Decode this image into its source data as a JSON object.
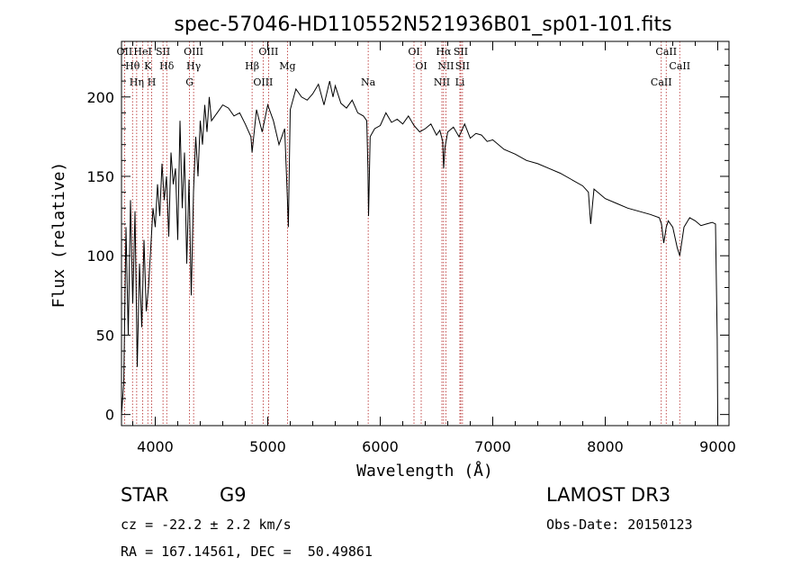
{
  "chart_data": {
    "type": "line",
    "title": "spec-57046-HD110552N521936B01_sp01-101.fits",
    "xlabel": "Wavelength (Å)",
    "ylabel": "Flux (relative)",
    "xlim": [
      3700,
      9100
    ],
    "ylim": [
      -7,
      235
    ],
    "xticks": [
      4000,
      5000,
      6000,
      7000,
      8000,
      9000
    ],
    "yticks": [
      0,
      50,
      100,
      150,
      200
    ],
    "series": [
      {
        "name": "flux",
        "x": [
          3700,
          3720,
          3740,
          3760,
          3780,
          3800,
          3820,
          3840,
          3860,
          3880,
          3900,
          3920,
          3940,
          3960,
          3980,
          4000,
          4020,
          4040,
          4060,
          4080,
          4100,
          4120,
          4140,
          4160,
          4180,
          4200,
          4220,
          4240,
          4260,
          4280,
          4300,
          4320,
          4340,
          4360,
          4380,
          4400,
          4420,
          4440,
          4460,
          4480,
          4500,
          4550,
          4600,
          4650,
          4700,
          4750,
          4800,
          4850,
          4861,
          4900,
          4950,
          5000,
          5050,
          5100,
          5150,
          5175,
          5183,
          5200,
          5250,
          5300,
          5350,
          5400,
          5450,
          5500,
          5550,
          5580,
          5600,
          5650,
          5700,
          5750,
          5800,
          5850,
          5880,
          5890,
          5896,
          5910,
          5950,
          6000,
          6050,
          6100,
          6150,
          6200,
          6250,
          6300,
          6350,
          6400,
          6450,
          6500,
          6530,
          6555,
          6563,
          6575,
          6600,
          6650,
          6700,
          6750,
          6800,
          6850,
          6900,
          6950,
          7000,
          7100,
          7200,
          7300,
          7400,
          7500,
          7600,
          7700,
          7800,
          7850,
          7870,
          7900,
          8000,
          8100,
          8200,
          8300,
          8400,
          8480,
          8500,
          8520,
          8542,
          8560,
          8600,
          8640,
          8662,
          8700,
          8750,
          8800,
          8850,
          8900,
          8950,
          8980,
          8995,
          9000
        ],
        "values": [
          0,
          20,
          118,
          50,
          135,
          70,
          128,
          30,
          95,
          55,
          110,
          65,
          80,
          105,
          130,
          118,
          145,
          125,
          158,
          135,
          150,
          112,
          165,
          145,
          155,
          110,
          185,
          130,
          165,
          95,
          148,
          75,
          140,
          175,
          150,
          185,
          170,
          195,
          178,
          200,
          185,
          190,
          195,
          193,
          188,
          190,
          183,
          175,
          165,
          192,
          178,
          195,
          185,
          170,
          180,
          135,
          118,
          192,
          205,
          200,
          198,
          202,
          208,
          195,
          210,
          200,
          207,
          196,
          193,
          198,
          190,
          188,
          185,
          155,
          125,
          175,
          180,
          182,
          190,
          184,
          186,
          183,
          188,
          182,
          178,
          180,
          183,
          176,
          179,
          172,
          155,
          168,
          178,
          181,
          175,
          183,
          174,
          177,
          176,
          172,
          173,
          167,
          164,
          160,
          158,
          155,
          152,
          148,
          144,
          140,
          120,
          142,
          136,
          133,
          130,
          128,
          126,
          124,
          120,
          108,
          118,
          122,
          118,
          105,
          100,
          118,
          124,
          122,
          119,
          120,
          121,
          120,
          48,
          -4
        ]
      }
    ],
    "lines": [
      {
        "name": "OII",
        "x": 3727,
        "labels": [
          "OII"
        ]
      },
      {
        "name": "Hθ",
        "x": 3798,
        "labels": [
          "Hθ"
        ]
      },
      {
        "name": "Hη",
        "x": 3835,
        "labels": [
          "Hη"
        ]
      },
      {
        "name": "HeI",
        "x": 3889,
        "labels": [
          "HeI"
        ]
      },
      {
        "name": "K",
        "x": 3934,
        "labels": [
          "K"
        ]
      },
      {
        "name": "H",
        "x": 3968,
        "labels": [
          "H"
        ]
      },
      {
        "name": "SII",
        "x": 4069,
        "labels": [
          "SII"
        ]
      },
      {
        "name": "Hδ",
        "x": 4102,
        "labels": [
          "Hδ"
        ]
      },
      {
        "name": "G",
        "x": 4305,
        "labels": [
          "G"
        ]
      },
      {
        "name": "Hγ",
        "x": 4341,
        "labels": [
          "OIII",
          "Hγ"
        ]
      },
      {
        "name": "Hβ",
        "x": 4861,
        "labels": [
          "Hβ"
        ]
      },
      {
        "name": "OIII 4959",
        "x": 4959,
        "labels": [
          "OIII"
        ]
      },
      {
        "name": "OIII 5007",
        "x": 5007,
        "labels": [
          "OIII"
        ]
      },
      {
        "name": "Mg",
        "x": 5175,
        "labels": [
          "Mg"
        ]
      },
      {
        "name": "Na",
        "x": 5893,
        "labels": [
          "Na"
        ]
      },
      {
        "name": "OI 6300",
        "x": 6300,
        "labels": [
          "OI"
        ]
      },
      {
        "name": "OI 6364",
        "x": 6364,
        "labels": [
          "OI"
        ]
      },
      {
        "name": "NII 6548",
        "x": 6548,
        "labels": [
          "NII"
        ]
      },
      {
        "name": "Hα",
        "x": 6563,
        "labels": [
          "Hα"
        ]
      },
      {
        "name": "NII 6583",
        "x": 6583,
        "labels": [
          "NII"
        ]
      },
      {
        "name": "Li",
        "x": 6708,
        "labels": [
          "Li"
        ]
      },
      {
        "name": "SII 6716",
        "x": 6716,
        "labels": [
          "SII"
        ]
      },
      {
        "name": "SII 6731",
        "x": 6731,
        "labels": [
          "SII"
        ]
      },
      {
        "name": "CaII 8498",
        "x": 8498,
        "labels": [
          "CaII"
        ]
      },
      {
        "name": "CaII 8542",
        "x": 8542,
        "labels": [
          "CaII"
        ]
      },
      {
        "name": "CaII 8662",
        "x": 8662,
        "labels": [
          "CaII"
        ]
      }
    ]
  },
  "info": {
    "class": "STAR",
    "subclass": "G9",
    "survey": "LAMOST DR3",
    "cz": "cz = -22.2 ± 2.2 km/s",
    "obs_date": "Obs-Date: 20150123",
    "radec": "RA = 167.14561, DEC =  50.49861"
  },
  "colors": {
    "spectrum": "#000000",
    "line_marker": "#b22222",
    "background": "#ffffff"
  }
}
